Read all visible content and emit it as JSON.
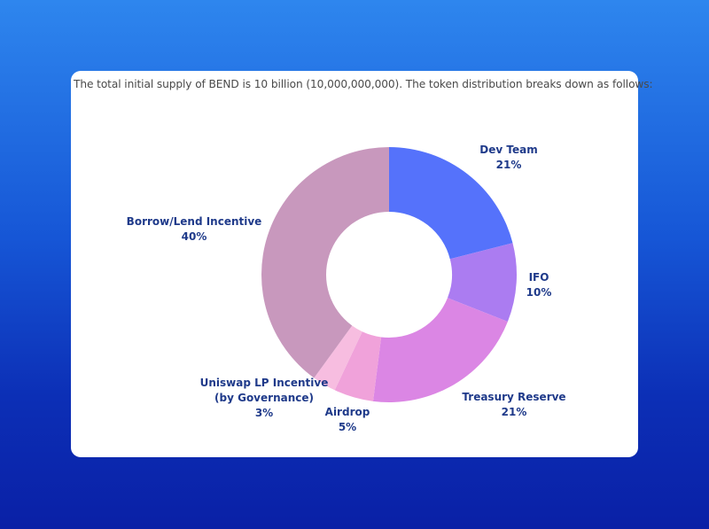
{
  "intro_text": "The total initial supply of BEND is 10 billion (10,000,000,000). The token distribution breaks down as follows:",
  "chart_data": {
    "type": "pie",
    "donut": true,
    "unit": "%",
    "slices": [
      {
        "name": "Dev Team",
        "value": 21,
        "label_lines": [
          "Dev Team"
        ],
        "color": "#5572fb"
      },
      {
        "name": "IFO",
        "value": 10,
        "label_lines": [
          "IFO"
        ],
        "color": "#ab7cf1"
      },
      {
        "name": "Treasury Reserve",
        "value": 21,
        "label_lines": [
          "Treasury Reserve"
        ],
        "color": "#db86e4"
      },
      {
        "name": "Airdrop",
        "value": 5,
        "label_lines": [
          "Airdrop"
        ],
        "color": "#f0a2da"
      },
      {
        "name": "Uniswap LP Incentive (by Governance)",
        "value": 3,
        "label_lines": [
          "Uniswap LP Incentive",
          "(by Governance)"
        ],
        "color": "#f7bde0"
      },
      {
        "name": "Borrow/Lend Incentive",
        "value": 40,
        "label_lines": [
          "Borrow/Lend Incentive"
        ],
        "color": "#c898bd"
      }
    ]
  }
}
